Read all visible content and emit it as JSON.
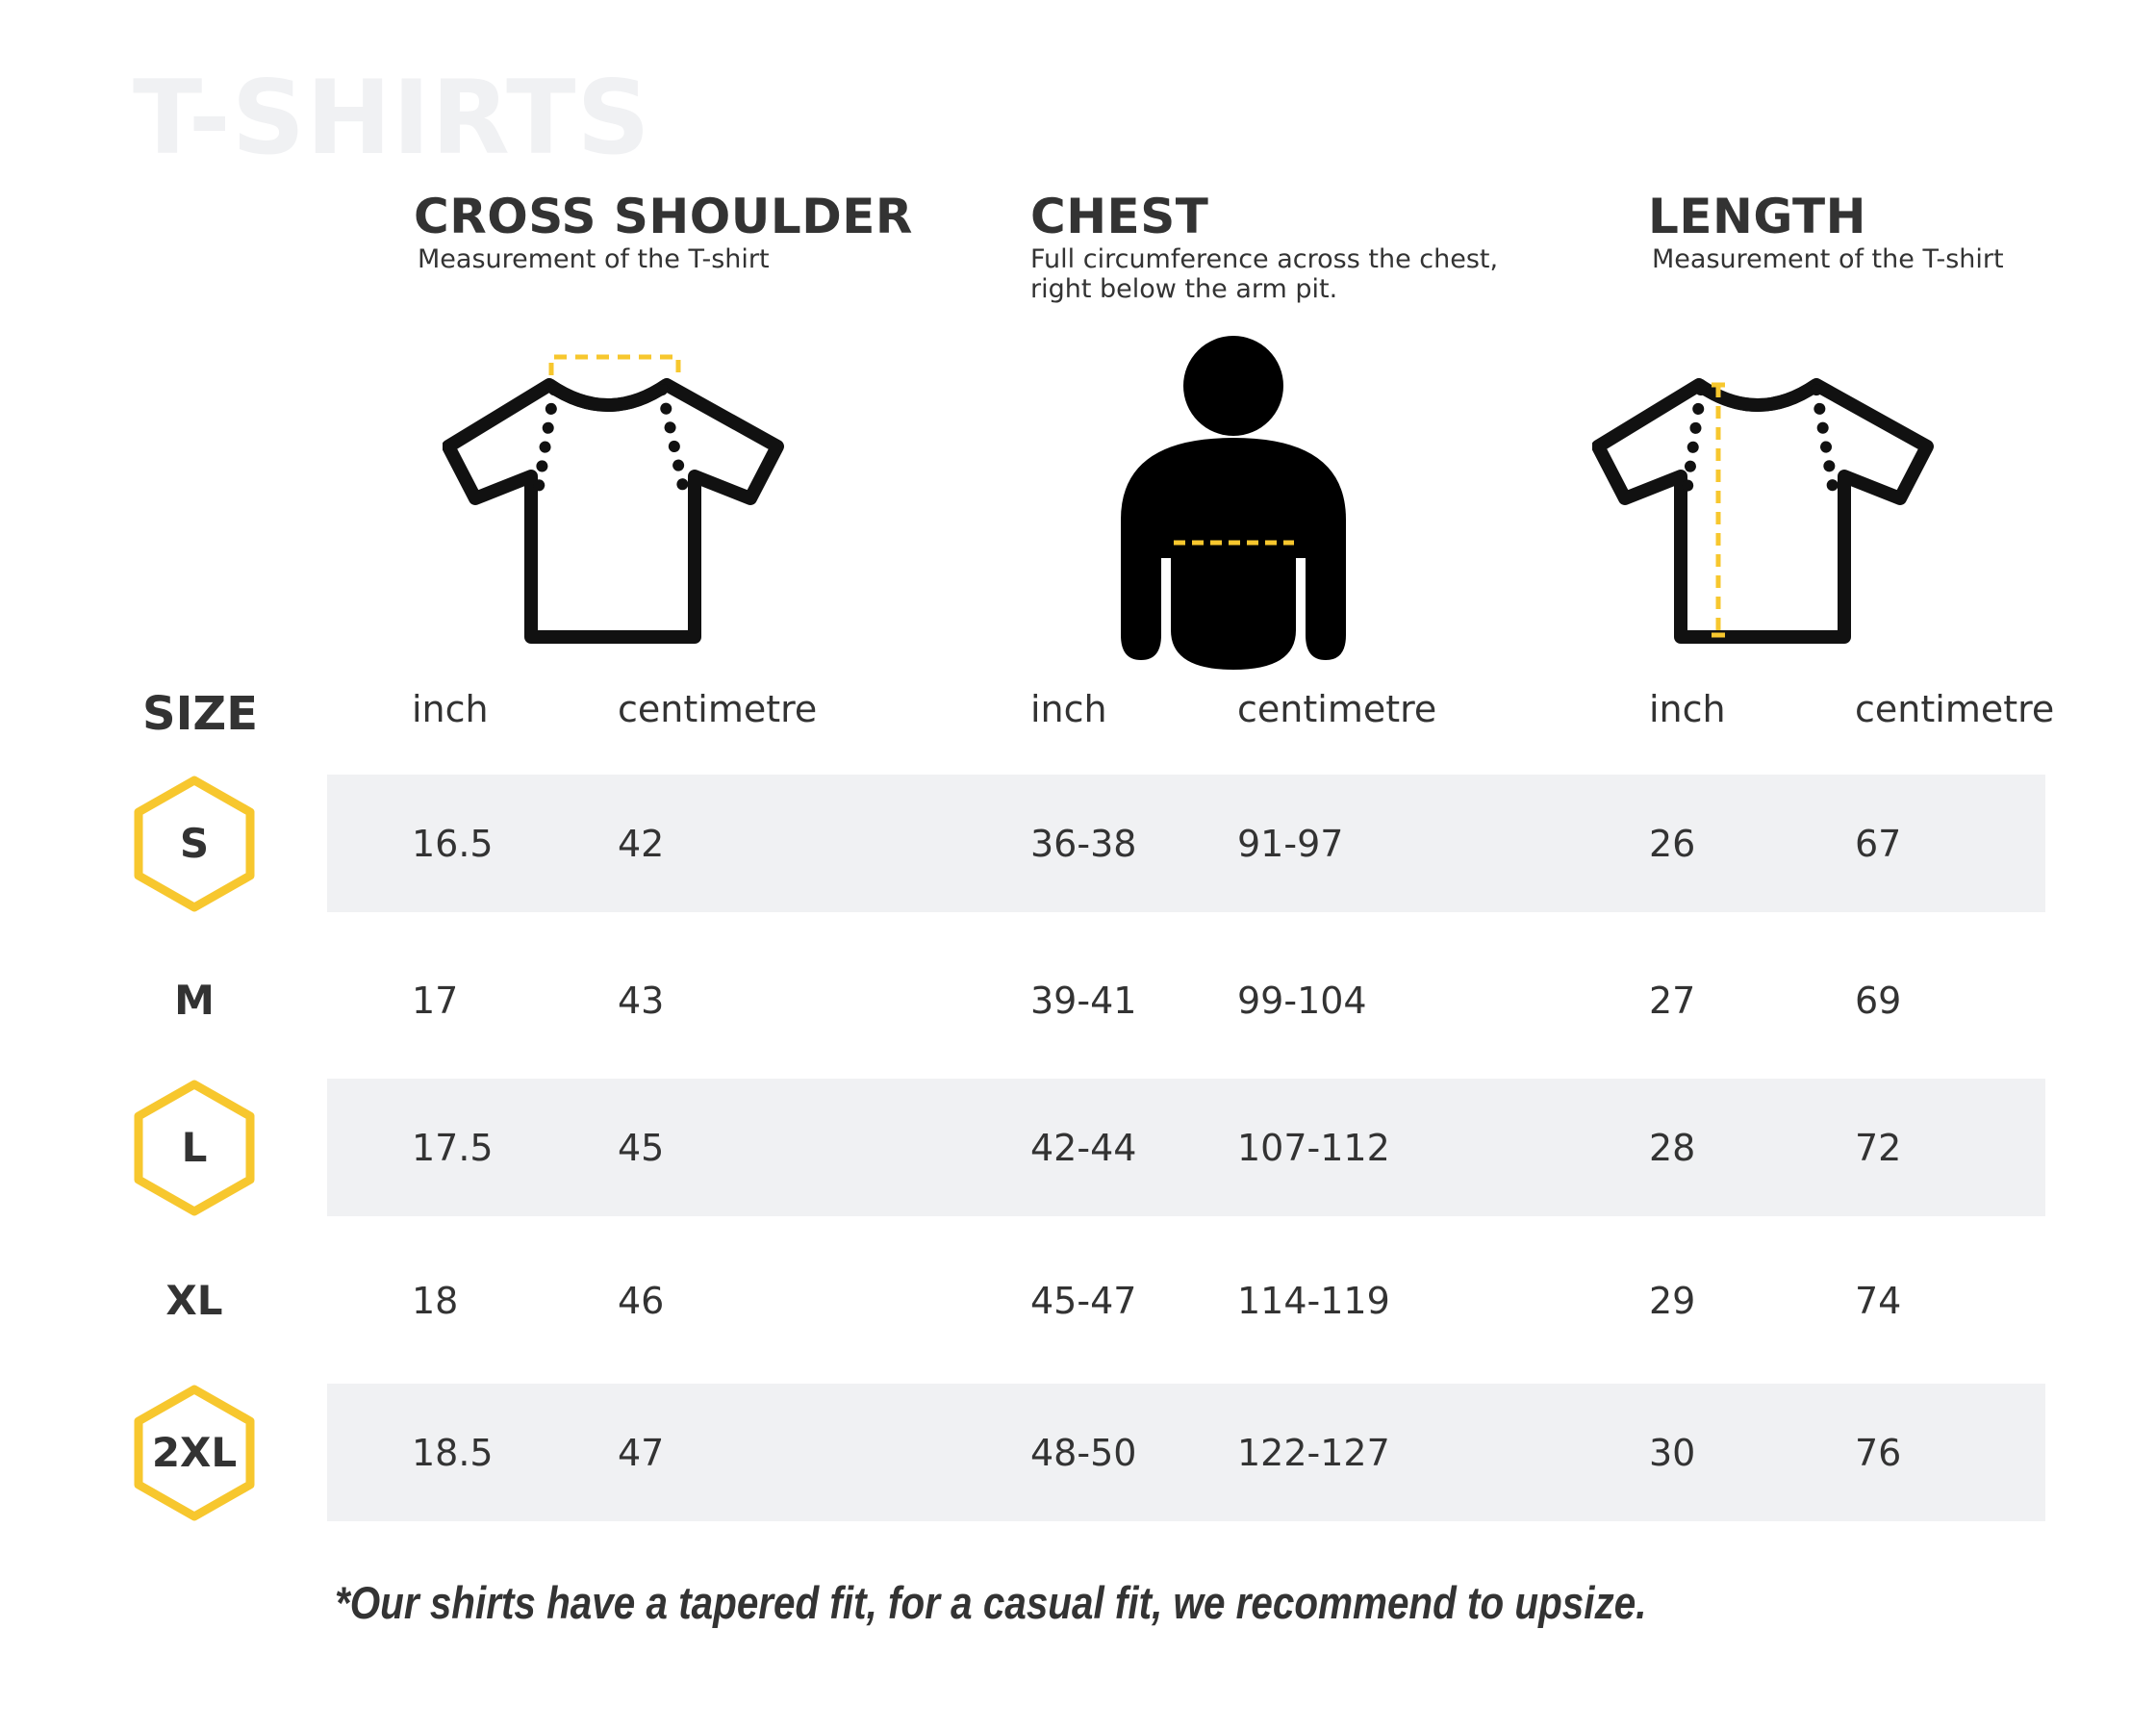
{
  "title": "T-SHIRTS",
  "columns": [
    {
      "key": "cross_shoulder",
      "heading": "CROSS SHOULDER",
      "description": "Measurement of the T-shirt"
    },
    {
      "key": "chest",
      "heading": "CHEST",
      "description": "Full circumference across the chest,\nright below the arm pit."
    },
    {
      "key": "length",
      "heading": "LENGTH",
      "description": "Measurement of the T-shirt"
    }
  ],
  "size_header": "SIZE",
  "units": [
    "inch",
    "centimetre",
    "inch",
    "centimetre",
    "inch",
    "centimetre"
  ],
  "rows": [
    {
      "size": "S",
      "badge": true,
      "shaded": true,
      "values": [
        "16.5",
        "42",
        "36-38",
        "91-97",
        "26",
        "67"
      ]
    },
    {
      "size": "M",
      "badge": false,
      "shaded": false,
      "values": [
        "17",
        "43",
        "39-41",
        "99-104",
        "27",
        "69"
      ]
    },
    {
      "size": "L",
      "badge": true,
      "shaded": true,
      "values": [
        "17.5",
        "45",
        "42-44",
        "107-112",
        "28",
        "72"
      ]
    },
    {
      "size": "XL",
      "badge": false,
      "shaded": false,
      "values": [
        "18",
        "46",
        "45-47",
        "114-119",
        "29",
        "74"
      ]
    },
    {
      "size": "2XL",
      "badge": true,
      "shaded": true,
      "values": [
        "18.5",
        "47",
        "48-50",
        "122-127",
        "30",
        "76"
      ]
    }
  ],
  "footnote": "*Our shirts have a tapered fit, for a casual fit, we recommend to upsize.",
  "colors": {
    "accent": "#f7c72e",
    "band": "#f0f1f3",
    "text": "#333333",
    "title": "#f0f1f3"
  },
  "icons": [
    "tshirt-shoulder-icon",
    "person-chest-icon",
    "tshirt-length-icon",
    "hexagon-badge-icon"
  ]
}
